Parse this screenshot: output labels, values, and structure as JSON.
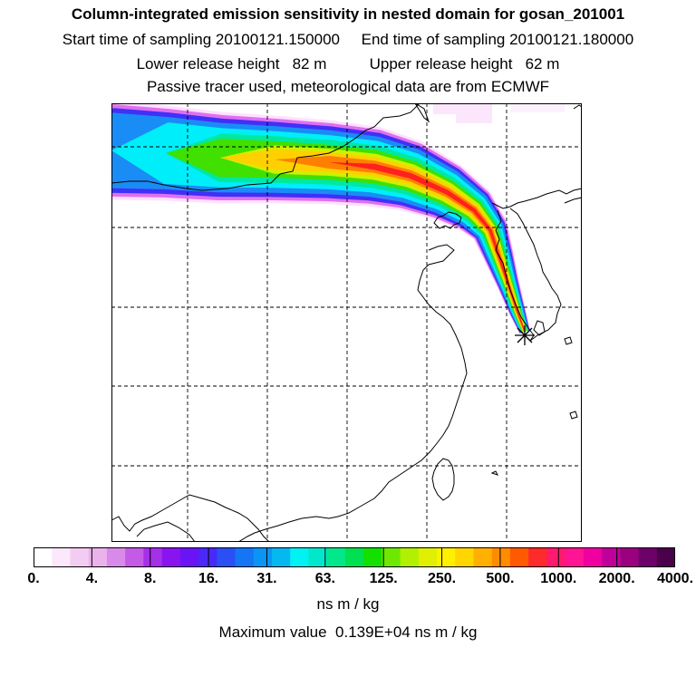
{
  "header": {
    "title": "Column-integrated emission sensitivity in nested domain for gosan_201001",
    "sampling": "Start time of sampling 20100121.150000     End time of sampling 20100121.180000",
    "release": "Lower release height   82 m          Upper release height   62 m",
    "tracer": "Passive tracer used, meteorological data are from ECMWF"
  },
  "legend": {
    "colors": [
      "#ffffff",
      "#fbe8fb",
      "#f3ccf3",
      "#ebb3eb",
      "#d98ae8",
      "#c45ae6",
      "#a62fe8",
      "#8a14f0",
      "#6a14f5",
      "#4a28f7",
      "#2a50f5",
      "#1475f5",
      "#0a95f5",
      "#06b8f2",
      "#00f2f2",
      "#00e8cc",
      "#00e88a",
      "#00e050",
      "#14e000",
      "#6ee800",
      "#b0f000",
      "#e0f000",
      "#fff000",
      "#ffd600",
      "#ffb000",
      "#ff8c00",
      "#ff5a00",
      "#ff2a2a",
      "#ff1a6e",
      "#ff1494",
      "#f000a0",
      "#c0009a",
      "#9a0080",
      "#6e006a",
      "#4a004a"
    ],
    "tick_labels": [
      "0.",
      "4.",
      "8.",
      "16.",
      "31.",
      "63.",
      "125.",
      "250.",
      "500.",
      "1000.",
      "2000.",
      "4000."
    ],
    "unit": "ns m / kg"
  },
  "footer": {
    "max_value": "Maximum value  0.139E+04 ns m / kg"
  },
  "map": {
    "receptor_marker": "asterisk-icon",
    "plume_colors": [
      "#ffe0ff",
      "#e070f0",
      "#4030f8",
      "#1a8cf5",
      "#00eefa",
      "#00e8a0",
      "#40e000",
      "#d0f000",
      "#ffd000",
      "#ff8000",
      "#ff2020"
    ]
  }
}
